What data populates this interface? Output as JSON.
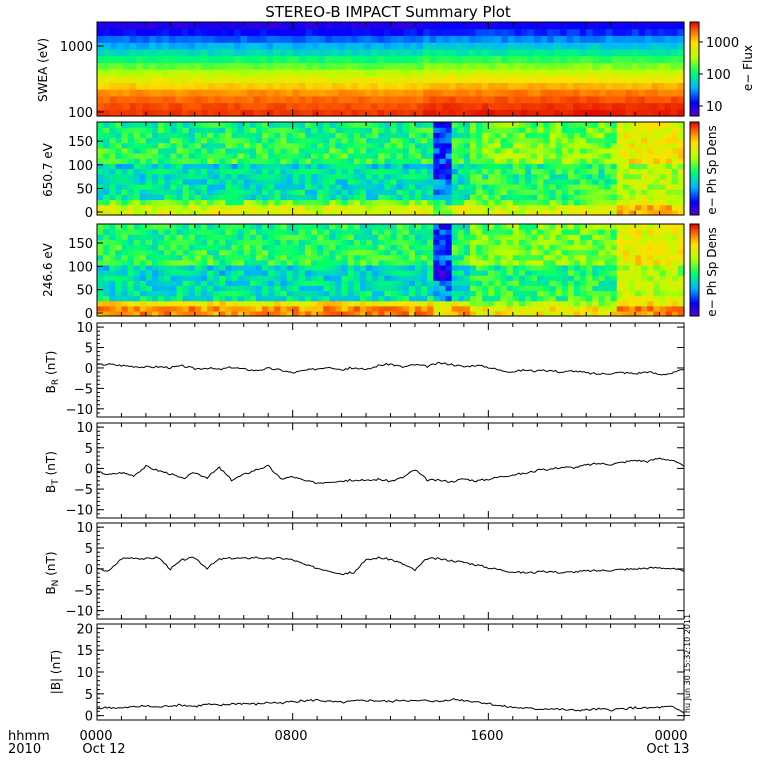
{
  "title": "STEREO-B IMPACT Summary Plot",
  "footer": {
    "time_label": "hhmm",
    "year_label": "2010",
    "stamp": "Thu Jun 30 15:32:10 2011"
  },
  "colors": {
    "axis": "#000000",
    "line": "#000000",
    "colormap": [
      "#5a00c8",
      "#0000ff",
      "#00b4ff",
      "#00ff6e",
      "#b4ff00",
      "#ffe000",
      "#ff6a00",
      "#e00000"
    ]
  },
  "chart_data": [
    {
      "type": "heatmap",
      "id": "swea",
      "ylabel": "SWEA (eV)",
      "y_scale": "log",
      "yticks": [
        "1000",
        "100"
      ],
      "colorbar": {
        "label": "e− Flux",
        "scale": "log",
        "ticks": [
          "1000",
          "100",
          "10"
        ]
      },
      "energy_profile_note_free": true,
      "rows_low_to_high": [
        {
          "level": 0.93
        },
        {
          "level": 0.9
        },
        {
          "level": 0.86
        },
        {
          "level": 0.81
        },
        {
          "level": 0.74
        },
        {
          "level": 0.66
        },
        {
          "level": 0.58
        },
        {
          "level": 0.5
        },
        {
          "level": 0.43
        },
        {
          "level": 0.36
        },
        {
          "level": 0.29
        },
        {
          "level": 0.22
        },
        {
          "level": 0.15
        },
        {
          "level": 0.09
        }
      ]
    },
    {
      "type": "heatmap",
      "id": "pad650",
      "ylabel": "650.7 eV",
      "yticks": [
        "150",
        "100",
        "50",
        "0"
      ],
      "ylim": [
        0,
        180
      ],
      "colorbar": {
        "label": "e− Ph Sp Dens"
      }
    },
    {
      "type": "heatmap",
      "id": "pad246",
      "ylabel": "246.6 eV",
      "yticks": [
        "150",
        "100",
        "50",
        "0"
      ],
      "ylim": [
        0,
        180
      ],
      "colorbar": {
        "label": "e− Ph Sp Dens"
      }
    },
    {
      "type": "line",
      "id": "br",
      "ylabel": "B",
      "ylabel_sub": "R",
      "ylabel_unit": "(nT)",
      "ylim": [
        -12,
        11
      ],
      "yticks": [
        "10",
        "5",
        "0",
        "−5",
        "−10"
      ],
      "x_hours": [
        0,
        0.5,
        1,
        1.5,
        2,
        2.5,
        3,
        3.5,
        4,
        4.5,
        5,
        5.5,
        6,
        6.5,
        7,
        7.5,
        8,
        8.5,
        9,
        9.5,
        10,
        10.5,
        11,
        11.5,
        12,
        12.5,
        13,
        13.5,
        14,
        14.5,
        15,
        15.5,
        16,
        16.5,
        17,
        17.5,
        18,
        18.5,
        19,
        19.5,
        20,
        20.5,
        21,
        21.5,
        22,
        22.5,
        23,
        23.5,
        24
      ],
      "values": [
        0.8,
        0.9,
        0.6,
        0.4,
        0.2,
        0.3,
        0.1,
        0.5,
        -0.2,
        0.0,
        -0.4,
        0.2,
        -0.3,
        -0.6,
        -0.1,
        -0.5,
        -1.2,
        -0.6,
        -0.2,
        0.3,
        -0.4,
        0.1,
        -0.5,
        0.6,
        1.0,
        0.2,
        0.8,
        0.4,
        1.2,
        0.9,
        0.3,
        0.7,
        0.2,
        -0.6,
        -0.9,
        -0.5,
        -0.8,
        -0.6,
        -1.0,
        -0.7,
        -1.2,
        -1.5,
        -1.3,
        -1.1,
        -1.4,
        -0.9,
        -1.6,
        -1.3,
        -0.4
      ]
    },
    {
      "type": "line",
      "id": "bt",
      "ylabel": "B",
      "ylabel_sub": "T",
      "ylabel_unit": "(nT)",
      "ylim": [
        -12,
        11
      ],
      "yticks": [
        "10",
        "5",
        "0",
        "−5",
        "−10"
      ],
      "x_hours": [
        0,
        0.5,
        1,
        1.5,
        2,
        2.5,
        3,
        3.5,
        4,
        4.5,
        5,
        5.5,
        6,
        6.5,
        7,
        7.5,
        8,
        8.5,
        9,
        9.5,
        10,
        10.5,
        11,
        11.5,
        12,
        12.5,
        13,
        13.5,
        14,
        14.5,
        15,
        15.5,
        16,
        16.5,
        17,
        17.5,
        18,
        18.5,
        19,
        19.5,
        20,
        20.5,
        21,
        21.5,
        22,
        22.5,
        23,
        23.5,
        24
      ],
      "values": [
        -0.8,
        -1.5,
        -1.0,
        -1.7,
        0.5,
        -0.5,
        -1.3,
        -2.5,
        -1.0,
        -2.2,
        0.2,
        -2.8,
        -1.5,
        -0.3,
        0.6,
        -2.5,
        -2.0,
        -3.0,
        -3.5,
        -3.2,
        -3.0,
        -2.8,
        -3.0,
        -2.6,
        -3.1,
        -2.2,
        -0.3,
        -2.8,
        -2.9,
        -3.2,
        -2.5,
        -3.0,
        -2.6,
        -2.0,
        -1.5,
        -1.2,
        -0.5,
        -0.2,
        0.3,
        0.2,
        0.8,
        1.2,
        1.0,
        1.5,
        2.0,
        1.7,
        2.5,
        2.0,
        0.5
      ]
    },
    {
      "type": "line",
      "id": "bn",
      "ylabel": "B",
      "ylabel_sub": "N",
      "ylabel_unit": "(nT)",
      "ylim": [
        -12,
        11
      ],
      "yticks": [
        "10",
        "5",
        "0",
        "−5",
        "−10"
      ],
      "x_hours": [
        0,
        0.5,
        1,
        1.5,
        2,
        2.5,
        3,
        3.5,
        4,
        4.5,
        5,
        5.5,
        6,
        6.5,
        7,
        7.5,
        8,
        8.5,
        9,
        9.5,
        10,
        10.5,
        11,
        11.5,
        12,
        12.5,
        13,
        13.5,
        14,
        14.5,
        15,
        15.5,
        16,
        16.5,
        17,
        17.5,
        18,
        18.5,
        19,
        19.5,
        20,
        20.5,
        21,
        21.5,
        22,
        22.5,
        23,
        23.5,
        24
      ],
      "values": [
        0.0,
        -0.5,
        2.5,
        2.7,
        2.4,
        2.8,
        0.0,
        2.2,
        2.7,
        0.2,
        2.3,
        2.6,
        2.5,
        2.8,
        2.4,
        2.6,
        2.2,
        1.0,
        0.2,
        -0.4,
        -1.2,
        -0.8,
        2.1,
        2.7,
        2.3,
        1.2,
        -0.3,
        2.5,
        2.4,
        2.0,
        1.6,
        1.0,
        0.3,
        -0.2,
        -0.7,
        -0.9,
        -0.8,
        -0.6,
        -0.9,
        -0.7,
        -0.5,
        -0.4,
        -0.3,
        -0.1,
        0.0,
        0.2,
        0.3,
        0.1,
        -0.6
      ]
    },
    {
      "type": "line",
      "id": "bmag",
      "ylabel": "|B| (nT)",
      "ylim": [
        -1,
        21
      ],
      "yticks": [
        "20",
        "15",
        "10",
        "5",
        "0"
      ],
      "x_hours": [
        0,
        0.5,
        1,
        1.5,
        2,
        2.5,
        3,
        3.5,
        4,
        4.5,
        5,
        5.5,
        6,
        6.5,
        7,
        7.5,
        8,
        8.5,
        9,
        9.5,
        10,
        10.5,
        11,
        11.5,
        12,
        12.5,
        13,
        13.5,
        14,
        14.5,
        15,
        15.5,
        16,
        16.5,
        17,
        17.5,
        18,
        18.5,
        19,
        19.5,
        20,
        20.5,
        21,
        21.5,
        22,
        22.5,
        23,
        23.5,
        24
      ],
      "values": [
        1.6,
        1.9,
        1.7,
        2.0,
        2.2,
        1.9,
        2.3,
        2.4,
        2.1,
        2.6,
        2.3,
        2.7,
        2.8,
        2.6,
        3.0,
        2.9,
        3.2,
        3.4,
        3.6,
        3.2,
        3.0,
        3.3,
        3.5,
        3.4,
        3.2,
        3.6,
        3.3,
        3.5,
        3.2,
        3.8,
        3.5,
        3.2,
        2.8,
        2.2,
        1.9,
        1.7,
        1.5,
        1.6,
        1.4,
        1.2,
        1.3,
        1.5,
        1.3,
        1.6,
        1.8,
        1.7,
        1.9,
        2.0,
        0.7
      ]
    }
  ],
  "x_axis": {
    "tick_labels": [
      "0000",
      "0800",
      "1600",
      "0000"
    ],
    "date_labels": [
      "Oct 12",
      "Oct 13"
    ]
  }
}
